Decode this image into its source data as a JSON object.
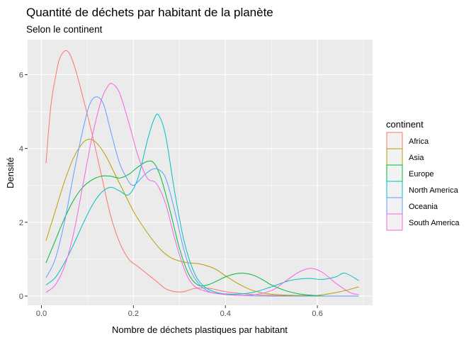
{
  "chart_data": {
    "type": "line",
    "title": "Quantité de déchets par habitant de la planète",
    "subtitle": "Selon le continent",
    "xlabel": "Nombre de déchets plastiques par habitant",
    "ylabel": "Densité",
    "xlim": [
      -0.03,
      0.72
    ],
    "ylim": [
      -0.25,
      6.95
    ],
    "x_ticks": [
      0.0,
      0.2,
      0.4,
      0.6
    ],
    "x_tick_labels": [
      "0.0",
      "0.2",
      "0.4",
      "0.6"
    ],
    "y_ticks": [
      0,
      2,
      4,
      6
    ],
    "y_tick_labels": [
      "0",
      "2",
      "4",
      "6"
    ],
    "grid": true,
    "legend": {
      "title": "continent",
      "position": "right"
    },
    "series": [
      {
        "name": "Africa",
        "color": "#F8766D",
        "x": [
          0.01,
          0.02,
          0.03,
          0.04,
          0.055,
          0.07,
          0.09,
          0.11,
          0.13,
          0.15,
          0.17,
          0.19,
          0.21,
          0.23,
          0.25,
          0.27,
          0.29,
          0.31,
          0.33,
          0.35,
          0.37,
          0.4,
          0.45,
          0.5,
          0.55,
          0.6,
          0.65,
          0.69
        ],
        "y": [
          3.6,
          5.1,
          5.9,
          6.45,
          6.65,
          6.3,
          5.4,
          4.4,
          3.3,
          2.2,
          1.45,
          1.0,
          0.8,
          0.6,
          0.4,
          0.2,
          0.12,
          0.12,
          0.2,
          0.22,
          0.2,
          0.12,
          0.05,
          0.02,
          0.01,
          0.0,
          0.0,
          0.0
        ]
      },
      {
        "name": "Asia",
        "color": "#B79F00",
        "x": [
          0.01,
          0.03,
          0.05,
          0.07,
          0.09,
          0.105,
          0.12,
          0.14,
          0.16,
          0.18,
          0.2,
          0.22,
          0.24,
          0.26,
          0.28,
          0.3,
          0.32,
          0.34,
          0.36,
          0.38,
          0.4,
          0.43,
          0.46,
          0.5,
          0.55,
          0.6,
          0.65,
          0.69
        ],
        "y": [
          1.5,
          2.3,
          3.1,
          3.75,
          4.15,
          4.25,
          4.15,
          3.8,
          3.3,
          2.8,
          2.3,
          1.9,
          1.55,
          1.25,
          1.05,
          0.95,
          0.9,
          0.88,
          0.82,
          0.72,
          0.55,
          0.32,
          0.15,
          0.05,
          0.02,
          0.02,
          0.12,
          0.25
        ]
      },
      {
        "name": "Europe",
        "color": "#00BA38",
        "x": [
          0.01,
          0.03,
          0.05,
          0.07,
          0.09,
          0.11,
          0.13,
          0.15,
          0.17,
          0.19,
          0.21,
          0.23,
          0.245,
          0.26,
          0.28,
          0.3,
          0.32,
          0.34,
          0.36,
          0.38,
          0.4,
          0.42,
          0.44,
          0.46,
          0.48,
          0.5,
          0.53,
          0.56,
          0.59,
          0.62,
          0.65,
          0.69
        ],
        "y": [
          0.9,
          1.5,
          2.1,
          2.6,
          2.95,
          3.15,
          3.25,
          3.25,
          3.2,
          3.3,
          3.5,
          3.65,
          3.6,
          3.2,
          2.3,
          1.3,
          0.6,
          0.3,
          0.3,
          0.4,
          0.52,
          0.6,
          0.62,
          0.57,
          0.45,
          0.3,
          0.15,
          0.06,
          0.02,
          0.0,
          0.0,
          0.0
        ]
      },
      {
        "name": "North America",
        "color": "#00BFC4",
        "x": [
          0.01,
          0.03,
          0.05,
          0.07,
          0.09,
          0.11,
          0.13,
          0.15,
          0.17,
          0.19,
          0.21,
          0.23,
          0.245,
          0.255,
          0.27,
          0.29,
          0.31,
          0.33,
          0.35,
          0.38,
          0.42,
          0.46,
          0.5,
          0.54,
          0.58,
          0.61,
          0.64,
          0.66,
          0.69
        ],
        "y": [
          0.3,
          0.5,
          0.9,
          1.4,
          1.95,
          2.45,
          2.8,
          2.95,
          2.85,
          2.75,
          3.2,
          4.2,
          4.8,
          4.9,
          4.35,
          2.8,
          1.5,
          0.7,
          0.3,
          0.1,
          0.05,
          0.1,
          0.25,
          0.42,
          0.48,
          0.45,
          0.52,
          0.62,
          0.42
        ]
      },
      {
        "name": "Oceania",
        "color": "#619CFF",
        "x": [
          0.01,
          0.03,
          0.05,
          0.07,
          0.09,
          0.105,
          0.12,
          0.135,
          0.15,
          0.17,
          0.19,
          0.2,
          0.21,
          0.23,
          0.25,
          0.27,
          0.29,
          0.31,
          0.33,
          0.36,
          0.4,
          0.45,
          0.5,
          0.55,
          0.6,
          0.65,
          0.69
        ],
        "y": [
          0.5,
          1.0,
          2.0,
          3.3,
          4.5,
          5.2,
          5.4,
          5.2,
          4.5,
          3.6,
          3.1,
          3.0,
          3.1,
          3.35,
          3.45,
          3.2,
          2.3,
          1.25,
          0.55,
          0.15,
          0.04,
          0.01,
          0.0,
          0.0,
          0.0,
          0.0,
          0.0
        ]
      },
      {
        "name": "South America",
        "color": "#F564E3",
        "x": [
          0.01,
          0.03,
          0.05,
          0.07,
          0.09,
          0.11,
          0.13,
          0.145,
          0.155,
          0.17,
          0.19,
          0.21,
          0.23,
          0.25,
          0.27,
          0.29,
          0.31,
          0.33,
          0.36,
          0.4,
          0.45,
          0.5,
          0.53,
          0.56,
          0.585,
          0.61,
          0.64,
          0.67,
          0.69
        ],
        "y": [
          0.1,
          0.3,
          0.8,
          1.7,
          3.0,
          4.3,
          5.3,
          5.7,
          5.75,
          5.5,
          4.7,
          3.8,
          3.2,
          3.05,
          2.5,
          1.55,
          0.75,
          0.3,
          0.12,
          0.05,
          0.02,
          0.15,
          0.4,
          0.65,
          0.75,
          0.65,
          0.35,
          0.1,
          0.04
        ]
      }
    ]
  }
}
